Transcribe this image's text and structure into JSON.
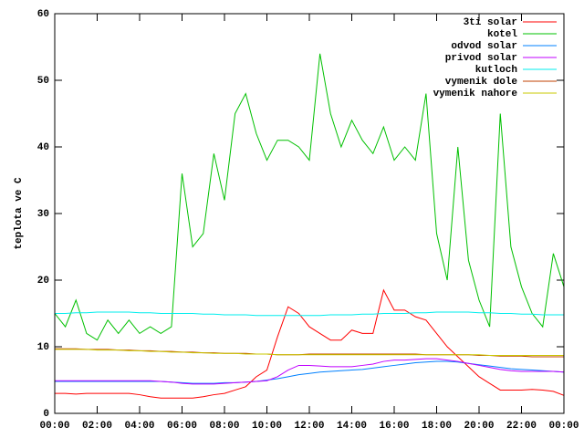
{
  "chart_data": {
    "type": "line",
    "y_label": "teplota ve C",
    "x": [
      0,
      0.5,
      1,
      1.5,
      2,
      2.5,
      3,
      3.5,
      4,
      4.5,
      5,
      5.5,
      6,
      6.5,
      7,
      7.5,
      8,
      8.5,
      9,
      9.5,
      10,
      10.5,
      11,
      11.5,
      12,
      12.5,
      13,
      13.5,
      14,
      14.5,
      15,
      15.5,
      16,
      16.5,
      17,
      17.5,
      18,
      18.5,
      19,
      19.5,
      20,
      20.5,
      21,
      21.5,
      22,
      22.5,
      23,
      23.5,
      24
    ],
    "xlim": [
      0,
      24
    ],
    "xticks": [
      {
        "value": 0,
        "label": "00:00"
      },
      {
        "value": 2,
        "label": "02:00"
      },
      {
        "value": 4,
        "label": "04:00"
      },
      {
        "value": 6,
        "label": "06:00"
      },
      {
        "value": 8,
        "label": "08:00"
      },
      {
        "value": 10,
        "label": "10:00"
      },
      {
        "value": 12,
        "label": "12:00"
      },
      {
        "value": 14,
        "label": "14:00"
      },
      {
        "value": 16,
        "label": "16:00"
      },
      {
        "value": 18,
        "label": "18:00"
      },
      {
        "value": 20,
        "label": "20:00"
      },
      {
        "value": 22,
        "label": "22:00"
      },
      {
        "value": 24,
        "label": "00:00"
      }
    ],
    "ylim": [
      0,
      60
    ],
    "yticks": [
      0,
      10,
      20,
      30,
      40,
      50,
      60
    ],
    "grid": false,
    "legend": "top-right",
    "series": [
      {
        "name": "3ti solar",
        "color": "#ff0000",
        "values": [
          3,
          3,
          2.9,
          3,
          3,
          3,
          3,
          3,
          2.8,
          2.5,
          2.3,
          2.3,
          2.3,
          2.3,
          2.5,
          2.8,
          3,
          3.5,
          4,
          5.5,
          6.5,
          11.5,
          16,
          15,
          13,
          12,
          11,
          11,
          12.5,
          12,
          12,
          18.5,
          15.5,
          15.5,
          14.5,
          14,
          12,
          10,
          8.5,
          7,
          5.5,
          4.5,
          3.5,
          3.5,
          3.5,
          3.6,
          3.5,
          3.3,
          2.7
        ]
      },
      {
        "name": "kotel",
        "color": "#00c000",
        "values": [
          15,
          13,
          17,
          12,
          11,
          14,
          12,
          14,
          12,
          13,
          12,
          13,
          36,
          25,
          27,
          39,
          32,
          45,
          48,
          42,
          38,
          41,
          41,
          40,
          38,
          54,
          45,
          40,
          44,
          41,
          39,
          43,
          38,
          40,
          38,
          48,
          27,
          20,
          40,
          23,
          17,
          13,
          45,
          25,
          19,
          15,
          13,
          24,
          19
        ]
      },
      {
        "name": "odvod solar",
        "color": "#0080ff",
        "values": [
          4.8,
          4.8,
          4.8,
          4.8,
          4.8,
          4.8,
          4.8,
          4.8,
          4.8,
          4.8,
          4.8,
          4.7,
          4.6,
          4.5,
          4.5,
          4.5,
          4.6,
          4.6,
          4.7,
          4.8,
          5,
          5.2,
          5.5,
          5.8,
          6,
          6.2,
          6.3,
          6.4,
          6.5,
          6.6,
          6.8,
          7,
          7.2,
          7.4,
          7.6,
          7.7,
          7.8,
          7.8,
          7.7,
          7.5,
          7.3,
          7.1,
          6.9,
          6.7,
          6.6,
          6.5,
          6.4,
          6.3,
          6.2
        ]
      },
      {
        "name": "privod solar",
        "color": "#c000ff",
        "values": [
          4.9,
          4.9,
          4.9,
          4.9,
          4.9,
          4.9,
          4.9,
          4.9,
          4.9,
          4.9,
          4.8,
          4.7,
          4.5,
          4.4,
          4.4,
          4.4,
          4.5,
          4.6,
          4.7,
          4.8,
          4.9,
          5.5,
          6.5,
          7.2,
          7.2,
          7.1,
          7,
          7,
          7,
          7.2,
          7.4,
          7.8,
          8,
          8,
          8.1,
          8.2,
          8.2,
          8,
          7.8,
          7.5,
          7.2,
          6.9,
          6.6,
          6.4,
          6.3,
          6.3,
          6.3,
          6.3,
          6.2
        ]
      },
      {
        "name": "kutloch",
        "color": "#00eeee",
        "values": [
          15,
          15,
          15.1,
          15.1,
          15.2,
          15.2,
          15.2,
          15.2,
          15.1,
          15.1,
          15,
          15,
          15,
          15,
          14.9,
          14.9,
          14.8,
          14.8,
          14.8,
          14.7,
          14.7,
          14.7,
          14.7,
          14.7,
          14.7,
          14.7,
          14.8,
          14.8,
          14.8,
          14.9,
          14.9,
          15,
          15,
          15,
          15.1,
          15.1,
          15.2,
          15.2,
          15.2,
          15.2,
          15.1,
          15.1,
          15,
          15,
          14.9,
          14.9,
          14.8,
          14.8,
          14.8
        ]
      },
      {
        "name": "vymenik dole",
        "color": "#c04000",
        "values": [
          9.7,
          9.7,
          9.7,
          9.6,
          9.6,
          9.6,
          9.5,
          9.5,
          9.4,
          9.4,
          9.3,
          9.3,
          9.2,
          9.2,
          9.1,
          9.1,
          9,
          9,
          9,
          8.9,
          8.9,
          8.8,
          8.8,
          8.8,
          8.9,
          8.9,
          8.9,
          8.9,
          8.9,
          8.9,
          8.9,
          8.9,
          8.9,
          8.9,
          8.9,
          8.8,
          8.8,
          8.8,
          8.8,
          8.8,
          8.7,
          8.7,
          8.6,
          8.6,
          8.6,
          8.5,
          8.5,
          8.5,
          8.5
        ]
      },
      {
        "name": "vymenik nahore",
        "color": "#c8c800",
        "values": [
          9.6,
          9.6,
          9.6,
          9.6,
          9.5,
          9.5,
          9.5,
          9.4,
          9.4,
          9.3,
          9.3,
          9.2,
          9.2,
          9.1,
          9.1,
          9,
          9,
          9,
          8.9,
          8.9,
          8.9,
          8.8,
          8.8,
          8.8,
          8.8,
          8.8,
          8.8,
          8.8,
          8.8,
          8.8,
          8.8,
          8.8,
          8.8,
          8.8,
          8.8,
          8.8,
          8.8,
          8.8,
          8.8,
          8.8,
          8.8,
          8.7,
          8.7,
          8.7,
          8.7,
          8.7,
          8.7,
          8.7,
          8.7
        ]
      }
    ]
  }
}
